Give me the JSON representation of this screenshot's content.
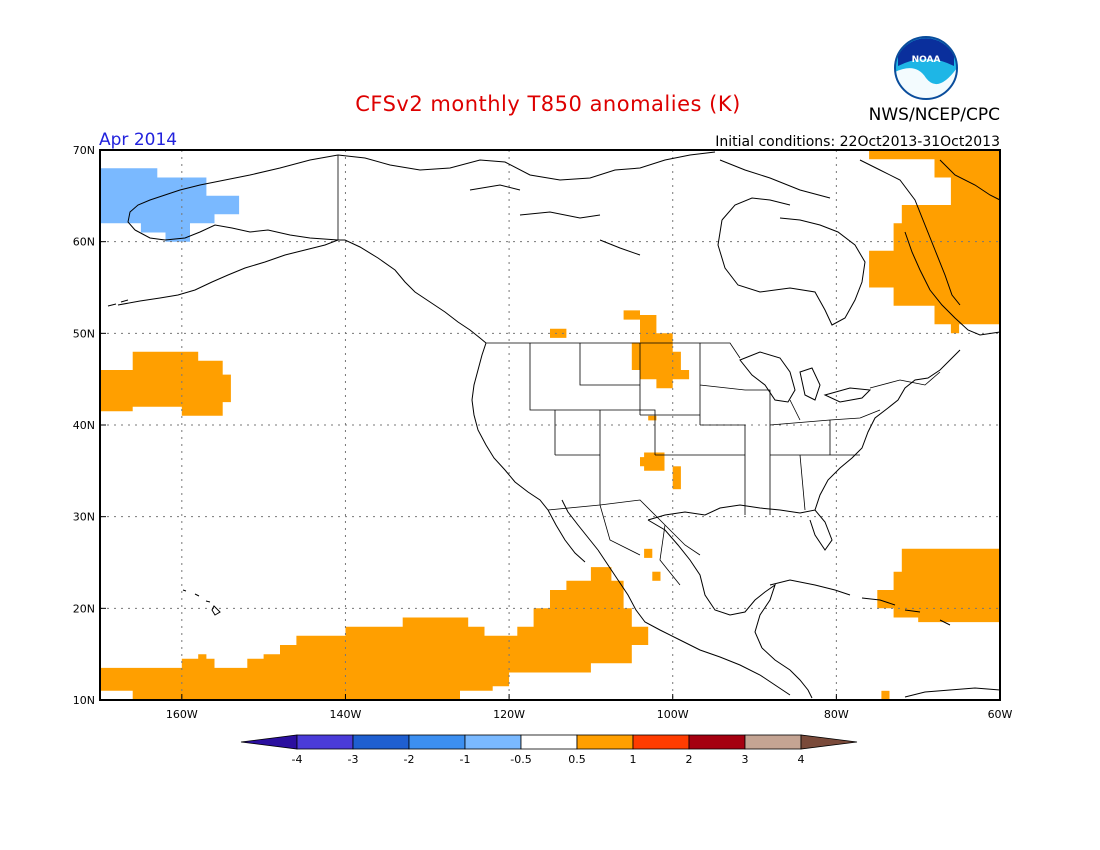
{
  "title": "CFSv2 monthly T850 anomalies (K)",
  "agency": "NWS/NCEP/CPC",
  "logo_text": "NOAA",
  "valid_month": "Apr 2014",
  "initial_conditions": "Initial conditions: 22Oct2013-31Oct2013",
  "colors": {
    "title": "#dd0000",
    "month": "#2222dd",
    "warm": "#ff9f00",
    "cold": "#7ab9ff",
    "frame": "#000000",
    "grid": "#777777"
  },
  "axes": {
    "lon_ticks": [
      {
        "value": -160,
        "label": "160W"
      },
      {
        "value": -140,
        "label": "140W"
      },
      {
        "value": -120,
        "label": "120W"
      },
      {
        "value": -100,
        "label": "100W"
      },
      {
        "value": -80,
        "label": "80W"
      },
      {
        "value": -60,
        "label": "60W"
      }
    ],
    "lat_ticks": [
      {
        "value": 10,
        "label": "10N"
      },
      {
        "value": 20,
        "label": "20N"
      },
      {
        "value": 30,
        "label": "30N"
      },
      {
        "value": 40,
        "label": "40N"
      },
      {
        "value": 50,
        "label": "50N"
      },
      {
        "value": 60,
        "label": "60N"
      },
      {
        "value": 70,
        "label": "70N"
      }
    ],
    "lon_range": [
      -170,
      -60
    ],
    "lat_range": [
      10,
      70
    ],
    "grid": true
  },
  "colorbar": {
    "boxes": [
      {
        "from": -4,
        "to": -3,
        "color": "#4a3bd8"
      },
      {
        "from": -3,
        "to": -2,
        "color": "#1f5fd0"
      },
      {
        "from": -2,
        "to": -1,
        "color": "#3c8ff0"
      },
      {
        "from": -1,
        "to": -0.5,
        "color": "#7ab9ff"
      },
      {
        "from": -0.5,
        "to": 0.5,
        "color": "#ffffff"
      },
      {
        "from": 0.5,
        "to": 1,
        "color": "#ff9f00"
      },
      {
        "from": 1,
        "to": 2,
        "color": "#ff3c00"
      },
      {
        "from": 2,
        "to": 3,
        "color": "#a50010"
      },
      {
        "from": 3,
        "to": 4,
        "color": "#c4a493"
      }
    ],
    "low_end_color": "#2b0f9f",
    "high_end_color": "#7a4a3a",
    "labels": [
      "-4",
      "-3",
      "-2",
      "-1",
      "-0.5",
      "0.5",
      "1",
      "2",
      "3",
      "4"
    ]
  },
  "anomaly_regions": [
    {
      "name": "alaska-west-cold",
      "class": "-1 to -0.5",
      "color": "#7ab9ff",
      "points": [
        [
          -170,
          68
        ],
        [
          -163,
          68
        ],
        [
          -163,
          67
        ],
        [
          -157,
          67
        ],
        [
          -157,
          65
        ],
        [
          -153,
          65
        ],
        [
          -153,
          63
        ],
        [
          -156,
          63
        ],
        [
          -156,
          62
        ],
        [
          -159,
          62
        ],
        [
          -159,
          60
        ],
        [
          -162,
          60
        ],
        [
          -162,
          61
        ],
        [
          -165,
          61
        ],
        [
          -165,
          62
        ],
        [
          -170,
          62
        ]
      ]
    },
    {
      "name": "pacific-midlat-warm",
      "class": "0.5 to 1",
      "color": "#ff9f00",
      "points": [
        [
          -170,
          46
        ],
        [
          -166,
          46
        ],
        [
          -166,
          48
        ],
        [
          -158,
          48
        ],
        [
          -158,
          47
        ],
        [
          -155,
          47
        ],
        [
          -155,
          45.5
        ],
        [
          -154,
          45.5
        ],
        [
          -154,
          42.5
        ],
        [
          -155,
          42.5
        ],
        [
          -155,
          41
        ],
        [
          -160,
          41
        ],
        [
          -160,
          42
        ],
        [
          -166,
          42
        ],
        [
          -166,
          41.5
        ],
        [
          -170,
          41.5
        ]
      ]
    },
    {
      "name": "pacific-tropical-warm",
      "class": "0.5 to 1",
      "color": "#ff9f00",
      "points": [
        [
          -170,
          13.5
        ],
        [
          -160,
          13.5
        ],
        [
          -160,
          14.5
        ],
        [
          -158,
          14.5
        ],
        [
          -158,
          15
        ],
        [
          -157,
          15
        ],
        [
          -157,
          14.5
        ],
        [
          -156,
          14.5
        ],
        [
          -156,
          13.5
        ],
        [
          -152,
          13.5
        ],
        [
          -152,
          14.5
        ],
        [
          -150,
          14.5
        ],
        [
          -150,
          15
        ],
        [
          -148,
          15
        ],
        [
          -148,
          16
        ],
        [
          -146,
          16
        ],
        [
          -146,
          17
        ],
        [
          -140,
          17
        ],
        [
          -140,
          18
        ],
        [
          -133,
          18
        ],
        [
          -133,
          19
        ],
        [
          -125,
          19
        ],
        [
          -125,
          18
        ],
        [
          -123,
          18
        ],
        [
          -123,
          17
        ],
        [
          -119,
          17
        ],
        [
          -119,
          18
        ],
        [
          -117,
          18
        ],
        [
          -117,
          20
        ],
        [
          -115,
          20
        ],
        [
          -115,
          22
        ],
        [
          -113,
          22
        ],
        [
          -113,
          23
        ],
        [
          -110,
          23
        ],
        [
          -110,
          24.5
        ],
        [
          -107.5,
          24.5
        ],
        [
          -107.5,
          23
        ],
        [
          -106,
          23
        ],
        [
          -106,
          20
        ],
        [
          -105,
          20
        ],
        [
          -105,
          18
        ],
        [
          -103,
          18
        ],
        [
          -103,
          16
        ],
        [
          -105,
          16
        ],
        [
          -105,
          14
        ],
        [
          -110,
          14
        ],
        [
          -110,
          13
        ],
        [
          -120,
          13
        ],
        [
          -120,
          11.5
        ],
        [
          -122,
          11.5
        ],
        [
          -122,
          11
        ],
        [
          -126,
          11
        ],
        [
          -126,
          10
        ],
        [
          -166,
          10
        ],
        [
          -166,
          11
        ],
        [
          -170,
          11
        ]
      ]
    },
    {
      "name": "canada-northeast-warm",
      "class": "0.5 to 1",
      "color": "#ff9f00",
      "points": [
        [
          -78,
          70
        ],
        [
          -60,
          70
        ],
        [
          -60,
          51
        ],
        [
          -65,
          51
        ],
        [
          -65,
          50
        ],
        [
          -66,
          50
        ],
        [
          -66,
          51
        ],
        [
          -68,
          51
        ],
        [
          -68,
          53
        ],
        [
          -73,
          53
        ],
        [
          -73,
          55
        ],
        [
          -76,
          55
        ],
        [
          -76,
          59
        ],
        [
          -73,
          59
        ],
        [
          -73,
          62
        ],
        [
          -72,
          62
        ],
        [
          -72,
          64
        ],
        [
          -66,
          64
        ],
        [
          -66,
          67
        ],
        [
          -68,
          67
        ],
        [
          -68,
          69
        ],
        [
          -76,
          69
        ],
        [
          -76,
          70
        ]
      ]
    },
    {
      "name": "north-central-us-warm",
      "class": "0.5 to 1",
      "color": "#ff9f00",
      "points": [
        [
          -106,
          52.5
        ],
        [
          -104,
          52.5
        ],
        [
          -104,
          52
        ],
        [
          -102,
          52
        ],
        [
          -102,
          50
        ],
        [
          -100,
          50
        ],
        [
          -100,
          48
        ],
        [
          -99,
          48
        ],
        [
          -99,
          46
        ],
        [
          -98,
          46
        ],
        [
          -98,
          45
        ],
        [
          -100,
          45
        ],
        [
          -100,
          44
        ],
        [
          -102,
          44
        ],
        [
          -102,
          45
        ],
        [
          -104,
          45
        ],
        [
          -104,
          46
        ],
        [
          -105,
          46
        ],
        [
          -105,
          49
        ],
        [
          -104,
          49
        ],
        [
          -104,
          51.5
        ],
        [
          -106,
          51.5
        ]
      ]
    },
    {
      "name": "gulf-of-alaska-warm-speck",
      "class": "0.5 to 1",
      "color": "#ff9f00",
      "points": [
        [
          -115,
          50.5
        ],
        [
          -113,
          50.5
        ],
        [
          -113,
          49.5
        ],
        [
          -115,
          49.5
        ]
      ]
    },
    {
      "name": "kansas-warm-speck",
      "class": "0.5 to 1",
      "color": "#ff9f00",
      "points": [
        [
          -103,
          41
        ],
        [
          -102,
          41
        ],
        [
          -102,
          40.5
        ],
        [
          -103,
          40.5
        ]
      ]
    },
    {
      "name": "southern-plains-warm",
      "class": "0.5 to 1",
      "color": "#ff9f00",
      "points": [
        [
          -103.5,
          37
        ],
        [
          -101,
          37
        ],
        [
          -101,
          35
        ],
        [
          -103.5,
          35
        ],
        [
          -103.5,
          35.5
        ],
        [
          -104,
          35.5
        ],
        [
          -104,
          36.5
        ],
        [
          -103.5,
          36.5
        ]
      ]
    },
    {
      "name": "texas-warm-speck",
      "class": "0.5 to 1",
      "color": "#ff9f00",
      "points": [
        [
          -100,
          35.5
        ],
        [
          -99,
          35.5
        ],
        [
          -99,
          33
        ],
        [
          -100,
          33
        ]
      ]
    },
    {
      "name": "mexico-warm-specks",
      "class": "0.5 to 1",
      "color": "#ff9f00",
      "points": [
        [
          -103.5,
          26.5
        ],
        [
          -102.5,
          26.5
        ],
        [
          -102.5,
          25.5
        ],
        [
          -103.5,
          25.5
        ]
      ]
    },
    {
      "name": "mexico-warm-specks-2",
      "class": "0.5 to 1",
      "color": "#ff9f00",
      "points": [
        [
          -102.5,
          24
        ],
        [
          -101.5,
          24
        ],
        [
          -101.5,
          23
        ],
        [
          -102.5,
          23
        ]
      ]
    },
    {
      "name": "atlantic-subtropical-warm",
      "class": "0.5 to 1",
      "color": "#ff9f00",
      "points": [
        [
          -72,
          26.5
        ],
        [
          -60,
          26.5
        ],
        [
          -60,
          18.5
        ],
        [
          -70,
          18.5
        ],
        [
          -70,
          19
        ],
        [
          -73,
          19
        ],
        [
          -73,
          20
        ],
        [
          -75,
          20
        ],
        [
          -75,
          22
        ],
        [
          -73,
          22
        ],
        [
          -73,
          24
        ],
        [
          -72,
          24
        ]
      ]
    },
    {
      "name": "caribbean-warm-speck",
      "class": "0.5 to 1",
      "color": "#ff9f00",
      "points": [
        [
          -74.5,
          11
        ],
        [
          -73.5,
          11
        ],
        [
          -73.5,
          10
        ],
        [
          -74.5,
          10
        ]
      ]
    }
  ]
}
